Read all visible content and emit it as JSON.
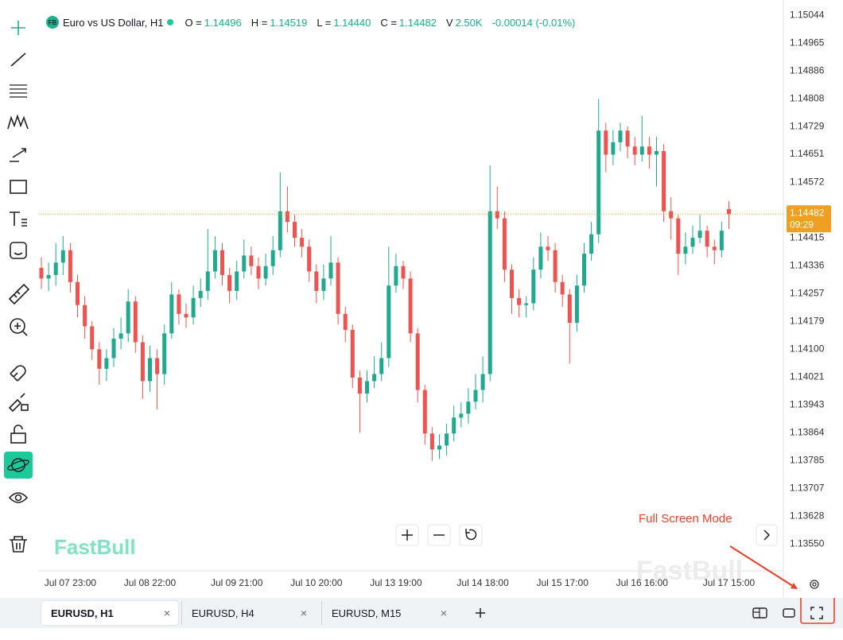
{
  "header": {
    "badge": "FB",
    "symbol": "Euro vs US Dollar, H1",
    "readout": [
      {
        "label": "O =",
        "value": "1.14496"
      },
      {
        "label": "H =",
        "value": "1.14519"
      },
      {
        "label": "L =",
        "value": "1.14440"
      },
      {
        "label": "C =",
        "value": "1.14482"
      },
      {
        "label": "V",
        "value": "2.50K"
      }
    ],
    "change": "-0.00014 (-0.01%)"
  },
  "chart_data": {
    "type": "candlestick",
    "categories": [
      null,
      null,
      null,
      null,
      "Jul 07 23:00",
      null,
      null,
      null,
      null,
      null,
      null,
      null,
      null,
      null,
      null,
      "Jul 08 22:00",
      null,
      null,
      null,
      null,
      null,
      null,
      null,
      null,
      null,
      null,
      null,
      "Jul 09 21:00",
      null,
      null,
      null,
      null,
      null,
      null,
      null,
      null,
      null,
      null,
      "Jul 10 20:00",
      null,
      null,
      null,
      null,
      null,
      null,
      null,
      null,
      null,
      null,
      "Jul 13 19:00",
      null,
      null,
      null,
      null,
      null,
      null,
      null,
      null,
      null,
      null,
      null,
      "Jul 14 18:00",
      null,
      null,
      null,
      null,
      null,
      null,
      null,
      null,
      null,
      null,
      "Jul 15 17:00",
      null,
      null,
      null,
      null,
      null,
      null,
      null,
      null,
      null,
      null,
      "Jul 16 16:00",
      null,
      null,
      null,
      null,
      null,
      null,
      null,
      null,
      null,
      null,
      null,
      "Jul 17 15:00"
    ],
    "open": [
      1.1433,
      1.143,
      1.1431,
      1.14345,
      1.1438,
      1.1429,
      1.14225,
      1.14165,
      1.141,
      1.14045,
      1.14075,
      1.1413,
      1.14145,
      1.14235,
      1.1412,
      1.1401,
      1.14075,
      1.1403,
      1.14145,
      1.14255,
      1.142,
      1.1419,
      1.14245,
      1.14265,
      1.1432,
      1.1438,
      1.1431,
      1.14265,
      1.1432,
      1.14365,
      1.14335,
      1.143,
      1.14335,
      1.1438,
      1.1449,
      1.1446,
      1.14415,
      1.1439,
      1.1432,
      1.14265,
      1.143,
      1.14345,
      1.142,
      1.14155,
      1.1402,
      1.13975,
      1.1401,
      1.1403,
      1.14075,
      1.1428,
      1.14335,
      1.143,
      1.14145,
      1.13985,
      1.13862,
      1.13817,
      1.13828,
      1.13862,
      1.13907,
      1.13918,
      1.13952,
      1.13985,
      1.1403,
      1.1449,
      1.1447,
      1.14325,
      1.14245,
      1.14225,
      1.1423,
      1.14325,
      1.1439,
      1.1438,
      1.1429,
      1.14255,
      1.14175,
      1.1428,
      1.1437,
      1.14425,
      1.14718,
      1.1465,
      1.14685,
      1.14718,
      1.14673,
      1.1465,
      1.14673,
      1.1465,
      1.1466,
      1.1449,
      1.1447,
      1.1437,
      1.1439,
      1.14415,
      1.14435,
      1.1439,
      1.1438,
      1.14496
    ],
    "high": [
      1.1436,
      1.14345,
      1.144,
      1.1442,
      1.144,
      1.1431,
      1.1425,
      1.1418,
      1.1412,
      1.141,
      1.1416,
      1.1419,
      1.1427,
      1.1425,
      1.1414,
      1.1411,
      1.141,
      1.1417,
      1.1429,
      1.1427,
      1.1423,
      1.1428,
      1.143,
      1.1444,
      1.1442,
      1.144,
      1.1433,
      1.1435,
      1.1441,
      1.1439,
      1.1436,
      1.1437,
      1.1442,
      1.146,
      1.1456,
      1.1448,
      1.1444,
      1.1441,
      1.1434,
      1.1434,
      1.1442,
      1.1436,
      1.1422,
      1.1417,
      1.1404,
      1.1404,
      1.1408,
      1.1412,
      1.1439,
      1.1437,
      1.1435,
      1.1432,
      1.1416,
      1.14,
      1.1388,
      1.1386,
      1.1389,
      1.1394,
      1.1395,
      1.1399,
      1.1403,
      1.1408,
      1.1462,
      1.1456,
      1.1449,
      1.1434,
      1.1427,
      1.1425,
      1.1436,
      1.1443,
      1.1442,
      1.144,
      1.1431,
      1.1427,
      1.1431,
      1.144,
      1.1446,
      1.14808,
      1.1474,
      1.1472,
      1.1474,
      1.1473,
      1.147,
      1.1476,
      1.147,
      1.147,
      1.1468,
      1.1453,
      1.1448,
      1.1443,
      1.1445,
      1.1448,
      1.1445,
      1.1441,
      1.1446,
      1.14519
    ],
    "low": [
      1.1427,
      1.14265,
      1.1428,
      1.1431,
      1.1426,
      1.1419,
      1.1413,
      1.1407,
      1.14,
      1.1401,
      1.1405,
      1.141,
      1.1412,
      1.1409,
      1.1396,
      1.1398,
      1.1393,
      1.14,
      1.1413,
      1.1417,
      1.1416,
      1.1417,
      1.1422,
      1.1424,
      1.143,
      1.1428,
      1.1423,
      1.1424,
      1.143,
      1.1431,
      1.1427,
      1.1428,
      1.1431,
      1.1436,
      1.1443,
      1.1439,
      1.1436,
      1.1429,
      1.1423,
      1.1424,
      1.1428,
      1.1417,
      1.1412,
      1.1399,
      1.13864,
      1.1395,
      1.1399,
      1.1401,
      1.1405,
      1.1426,
      1.1427,
      1.1412,
      1.1395,
      1.1383,
      1.13785,
      1.1379,
      1.138,
      1.1384,
      1.1388,
      1.1389,
      1.1393,
      1.1395,
      1.1401,
      1.1444,
      1.1429,
      1.142,
      1.1419,
      1.1419,
      1.1421,
      1.143,
      1.1435,
      1.1426,
      1.1422,
      1.1406,
      1.1415,
      1.1426,
      1.1435,
      1.144,
      1.146,
      1.1462,
      1.1466,
      1.1464,
      1.1462,
      1.1463,
      1.1461,
      1.1456,
      1.1446,
      1.1441,
      1.1431,
      1.1434,
      1.1437,
      1.144,
      1.1436,
      1.1434,
      1.1436,
      1.1444
    ],
    "close": [
      1.143,
      1.1431,
      1.14345,
      1.1438,
      1.1429,
      1.14225,
      1.14165,
      1.141,
      1.14045,
      1.14075,
      1.1413,
      1.14145,
      1.14235,
      1.1412,
      1.1401,
      1.14075,
      1.1403,
      1.14145,
      1.14255,
      1.142,
      1.1419,
      1.14245,
      1.14265,
      1.1432,
      1.1438,
      1.1431,
      1.14265,
      1.1432,
      1.14365,
      1.14335,
      1.143,
      1.14335,
      1.1438,
      1.1449,
      1.1446,
      1.14415,
      1.1439,
      1.1432,
      1.14265,
      1.143,
      1.14345,
      1.142,
      1.14155,
      1.1402,
      1.13975,
      1.1401,
      1.1403,
      1.14075,
      1.1428,
      1.14335,
      1.143,
      1.14145,
      1.13985,
      1.13862,
      1.13817,
      1.13828,
      1.13862,
      1.13907,
      1.13918,
      1.13952,
      1.13985,
      1.1403,
      1.1449,
      1.1447,
      1.14325,
      1.14245,
      1.14225,
      1.1423,
      1.14325,
      1.1439,
      1.1438,
      1.1429,
      1.14255,
      1.14175,
      1.1428,
      1.1437,
      1.14425,
      1.14718,
      1.1465,
      1.14685,
      1.14718,
      1.14673,
      1.1465,
      1.14673,
      1.1465,
      1.1466,
      1.1449,
      1.1447,
      1.1437,
      1.1439,
      1.14415,
      1.14435,
      1.1439,
      1.1438,
      1.14435,
      1.14482
    ],
    "up_color": "#22a88f",
    "down_color": "#ef5350",
    "ylim": [
      1.13474,
      1.15087
    ],
    "yticks": [
      1.15044,
      1.14965,
      1.14886,
      1.14808,
      1.14729,
      1.14651,
      1.14572,
      1.14415,
      1.14336,
      1.14257,
      1.14179,
      {
        "value": 1.141,
        "label": "1.14100"
      },
      1.14021,
      1.13943,
      1.13864,
      1.13785,
      1.13707,
      1.13628,
      {
        "value": 1.1355,
        "label": "1.13550"
      }
    ],
    "grid": false,
    "last_price": 1.14482,
    "last_time": "09:29",
    "last_color": "#f0a020"
  },
  "brand": "FastBull",
  "annotation": "Full Screen Mode",
  "tabs": [
    "EURUSD, H1",
    "EURUSD, H4",
    "EURUSD, M15"
  ]
}
